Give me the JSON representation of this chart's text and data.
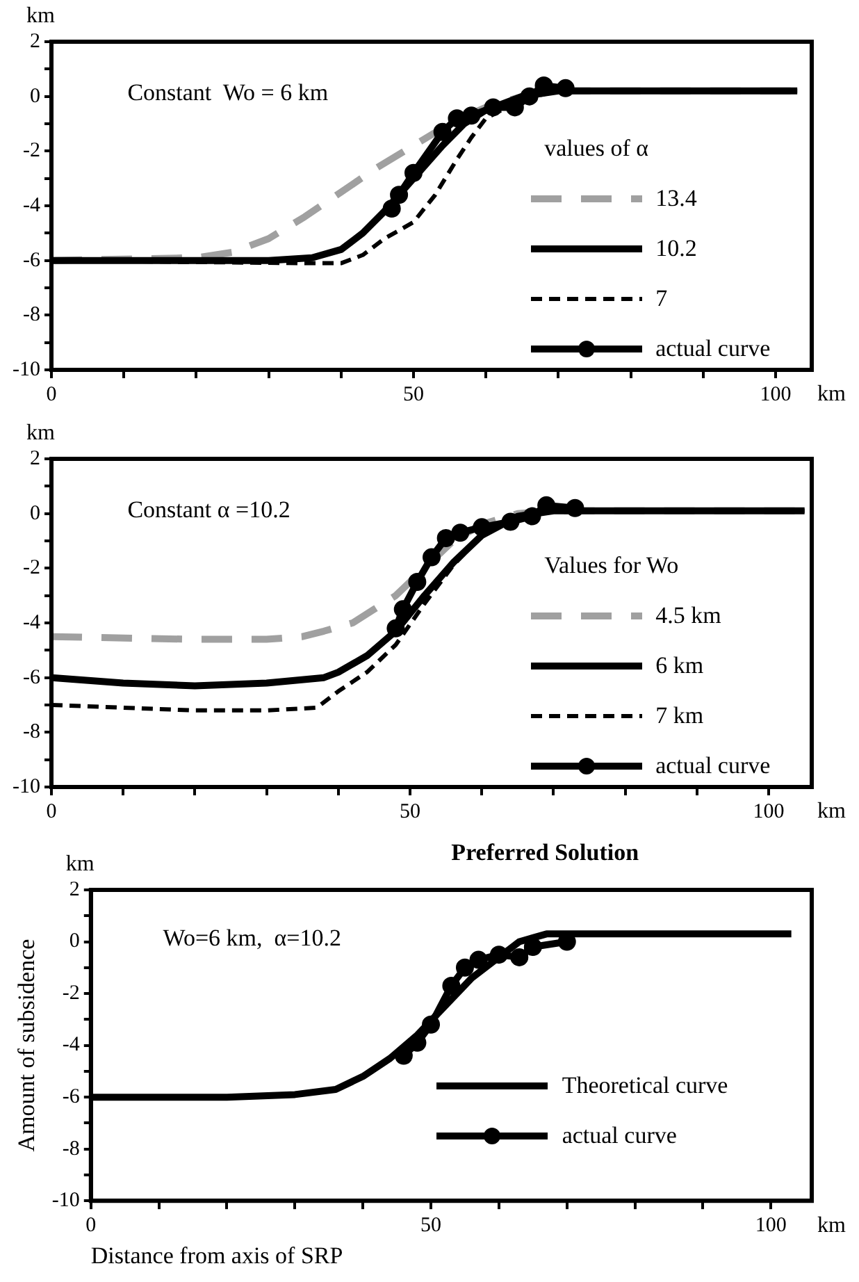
{
  "chart_data": [
    {
      "type": "line",
      "subtitle": "Constant  Wo = 6 km",
      "legend_title": "values of α",
      "legend": "right",
      "annotations": [
        "km",
        "km"
      ],
      "xlim": [
        0,
        105
      ],
      "ylim": [
        -10,
        2
      ],
      "xticks": [
        0,
        {
          "value": 10,
          "label": null
        },
        {
          "value": 20,
          "label": null
        },
        {
          "value": 30,
          "label": null
        },
        {
          "value": 40,
          "label": null
        },
        50,
        {
          "value": 60,
          "label": null
        },
        {
          "value": 70,
          "label": null
        },
        {
          "value": 80,
          "label": null
        },
        {
          "value": 90,
          "label": null
        },
        100
      ],
      "yticks": [
        -10,
        {
          "value": -9,
          "label": null
        },
        -8,
        {
          "value": -7,
          "label": null
        },
        -6,
        {
          "value": -5,
          "label": null
        },
        -4,
        {
          "value": -3,
          "label": null
        },
        -2,
        {
          "value": -1,
          "label": null
        },
        0,
        {
          "value": 1,
          "label": null
        },
        2
      ],
      "grid": false,
      "series": [
        {
          "name": "13.4",
          "color": "#a0a0a0",
          "line_style": "dashed",
          "x": [
            0,
            20,
            25,
            30,
            35,
            40,
            45,
            50,
            55,
            60,
            65,
            70,
            103
          ],
          "values": [
            -6,
            -5.9,
            -5.7,
            -5.2,
            -4.4,
            -3.5,
            -2.6,
            -1.8,
            -1,
            -0.4,
            0,
            0.2,
            0.2
          ]
        },
        {
          "name": "10.2",
          "color": "#000000",
          "line_style": "solid",
          "x": [
            0,
            30,
            36,
            40,
            43,
            46,
            50,
            54,
            57,
            60,
            65,
            70,
            103
          ],
          "values": [
            -6,
            -6,
            -5.9,
            -5.6,
            -5,
            -4.2,
            -3,
            -1.8,
            -1,
            -0.5,
            0,
            0.2,
            0.2
          ]
        },
        {
          "name": "7",
          "color": "#000000",
          "line_style": "dotted",
          "x": [
            0,
            35,
            40,
            43,
            46,
            50,
            53,
            56,
            58,
            60,
            65,
            70,
            103
          ],
          "values": [
            -6,
            -6.1,
            -6.1,
            -5.8,
            -5.2,
            -4.6,
            -3.6,
            -2.3,
            -1.5,
            -0.8,
            -0.1,
            0.2,
            0.2
          ]
        },
        {
          "name": "actual curve",
          "color": "#000000",
          "line_style": "solid",
          "marker": "circle",
          "x": [
            47,
            48,
            50,
            54,
            56,
            58,
            61,
            64,
            66,
            68,
            71
          ],
          "values": [
            -4.1,
            -3.6,
            -2.8,
            -1.3,
            -0.8,
            -0.7,
            -0.4,
            -0.4,
            0,
            0.4,
            0.3
          ]
        }
      ]
    },
    {
      "type": "line",
      "subtitle": "Constant α =10.2",
      "legend_title": "Values for Wo",
      "legend": "right",
      "annotations": [
        "km",
        "km"
      ],
      "xlim": [
        0,
        106
      ],
      "ylim": [
        -10,
        2
      ],
      "xticks": [
        0,
        {
          "value": 10,
          "label": null
        },
        {
          "value": 20,
          "label": null
        },
        {
          "value": 30,
          "label": null
        },
        {
          "value": 40,
          "label": null
        },
        50,
        {
          "value": 60,
          "label": null
        },
        {
          "value": 70,
          "label": null
        },
        {
          "value": 80,
          "label": null
        },
        {
          "value": 90,
          "label": null
        },
        100
      ],
      "yticks": [
        -10,
        {
          "value": -9,
          "label": null
        },
        -8,
        {
          "value": -7,
          "label": null
        },
        -6,
        {
          "value": -5,
          "label": null
        },
        -4,
        {
          "value": -3,
          "label": null
        },
        -2,
        {
          "value": -1,
          "label": null
        },
        0,
        {
          "value": 1,
          "label": null
        },
        2
      ],
      "grid": false,
      "series": [
        {
          "name": "4.5 km",
          "color": "#a0a0a0",
          "line_style": "dashed",
          "x": [
            0,
            20,
            30,
            35,
            38,
            42,
            45,
            48,
            52,
            56,
            60,
            65,
            70,
            105
          ],
          "values": [
            -4.5,
            -4.6,
            -4.6,
            -4.5,
            -4.3,
            -4,
            -3.5,
            -3,
            -2,
            -1,
            -0.4,
            0,
            0.1,
            0.1
          ]
        },
        {
          "name": "6 km",
          "color": "#000000",
          "line_style": "solid",
          "x": [
            0,
            10,
            20,
            30,
            38,
            40,
            44,
            48,
            52,
            56,
            60,
            65,
            70,
            105
          ],
          "values": [
            -6,
            -6.2,
            -6.3,
            -6.2,
            -6,
            -5.8,
            -5.2,
            -4.3,
            -3,
            -1.8,
            -0.8,
            -0.1,
            0.1,
            0.1
          ]
        },
        {
          "name": "7 km",
          "color": "#000000",
          "line_style": "dotted",
          "x": [
            0,
            20,
            30,
            37,
            40,
            44,
            48,
            52,
            56,
            60,
            65,
            70,
            105
          ],
          "values": [
            -7,
            -7.2,
            -7.2,
            -7.1,
            -6.5,
            -5.8,
            -4.8,
            -3.3,
            -1.9,
            -0.8,
            -0.1,
            0.1,
            0.1
          ]
        },
        {
          "name": "actual curve",
          "color": "#000000",
          "line_style": "solid",
          "marker": "circle",
          "x": [
            48,
            49,
            51,
            53,
            55,
            57,
            60,
            64,
            67,
            69,
            73
          ],
          "values": [
            -4.2,
            -3.5,
            -2.5,
            -1.6,
            -0.9,
            -0.7,
            -0.5,
            -0.3,
            -0.1,
            0.3,
            0.2
          ]
        }
      ]
    },
    {
      "type": "line",
      "title": "Preferred Solution",
      "subtitle": "Wo=6 km,  α=10.2",
      "ylabel": "Amount of subsidence",
      "xlabel": "Distance from axis of SRP",
      "legend": "bottom right",
      "annotations": [
        "km",
        "km"
      ],
      "xlim": [
        0,
        106
      ],
      "ylim": [
        -10,
        2
      ],
      "xticks": [
        0,
        {
          "value": 10,
          "label": null
        },
        {
          "value": 20,
          "label": null
        },
        {
          "value": 30,
          "label": null
        },
        {
          "value": 40,
          "label": null
        },
        50,
        {
          "value": 60,
          "label": null
        },
        {
          "value": 70,
          "label": null
        },
        {
          "value": 80,
          "label": null
        },
        {
          "value": 90,
          "label": null
        },
        100
      ],
      "yticks": [
        -10,
        {
          "value": -9,
          "label": null
        },
        -8,
        {
          "value": -7,
          "label": null
        },
        -6,
        {
          "value": -5,
          "label": null
        },
        -4,
        {
          "value": -3,
          "label": null
        },
        -2,
        {
          "value": -1,
          "label": null
        },
        0,
        {
          "value": 1,
          "label": null
        },
        2
      ],
      "grid": false,
      "series": [
        {
          "name": "Theoretical curve",
          "color": "#000000",
          "line_style": "solid",
          "x": [
            0,
            20,
            30,
            36,
            40,
            44,
            48,
            52,
            56,
            60,
            63,
            67,
            75,
            103
          ],
          "values": [
            -6,
            -6,
            -5.9,
            -5.7,
            -5.2,
            -4.5,
            -3.6,
            -2.5,
            -1.4,
            -0.6,
            0,
            0.3,
            0.3,
            0.3
          ]
        },
        {
          "name": "actual curve",
          "color": "#000000",
          "line_style": "solid",
          "marker": "circle",
          "x": [
            46,
            48,
            50,
            53,
            55,
            57,
            60,
            63,
            65,
            70
          ],
          "values": [
            -4.4,
            -3.9,
            -3.2,
            -1.7,
            -1,
            -0.7,
            -0.5,
            -0.6,
            -0.2,
            0
          ]
        }
      ]
    }
  ]
}
